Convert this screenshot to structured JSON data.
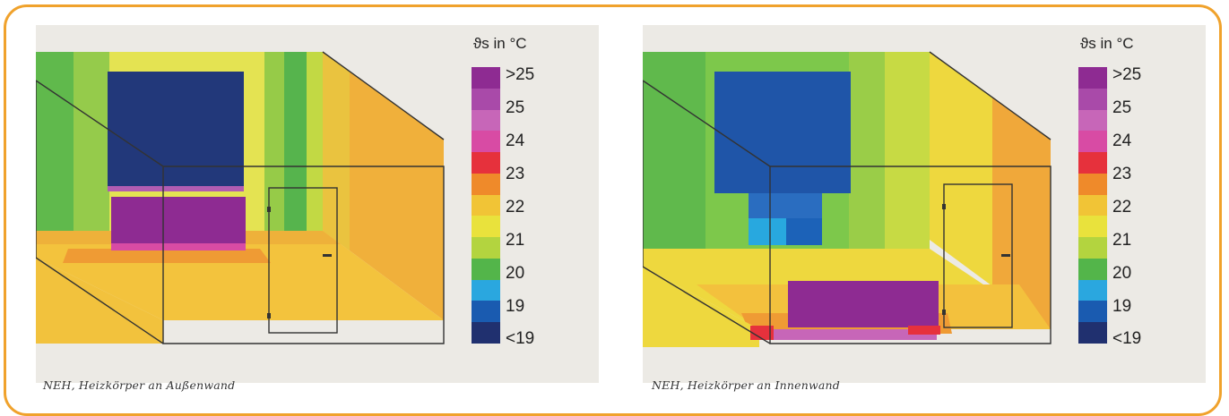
{
  "legend": {
    "title": "ϑs in °C",
    "labels": [
      ">25",
      "25",
      "24",
      "23",
      "22",
      "21",
      "20",
      "19",
      "<19"
    ],
    "colors": [
      "#8e2b92",
      "#b15cb2",
      "#d84ba4",
      "#e6313c",
      "#ef8a2a",
      "#e9d838",
      "#b3d43f",
      "#53b54a",
      "#2aa7df",
      "#1a5bb0",
      "#20306f"
    ]
  },
  "panels": [
    {
      "caption": "NEH, Heizkörper an Außenwand",
      "radiator_position": "outer wall, below window",
      "colors": {
        "back_wall_mid": "#e3e24f",
        "window": "#22387a",
        "radiator": "#8e2b92",
        "right_wall": "#f0b03a",
        "floor": "#f2c23d"
      }
    },
    {
      "caption": "NEH, Heizkörper an Innenwand",
      "radiator_position": "inner wall, near floor front",
      "colors": {
        "back_wall_mid": "#7dc84b",
        "window": "#1f55a8",
        "radiator": "#8e2b92",
        "right_wall": "#f0b03a",
        "floor": "#f2c23d"
      }
    }
  ]
}
